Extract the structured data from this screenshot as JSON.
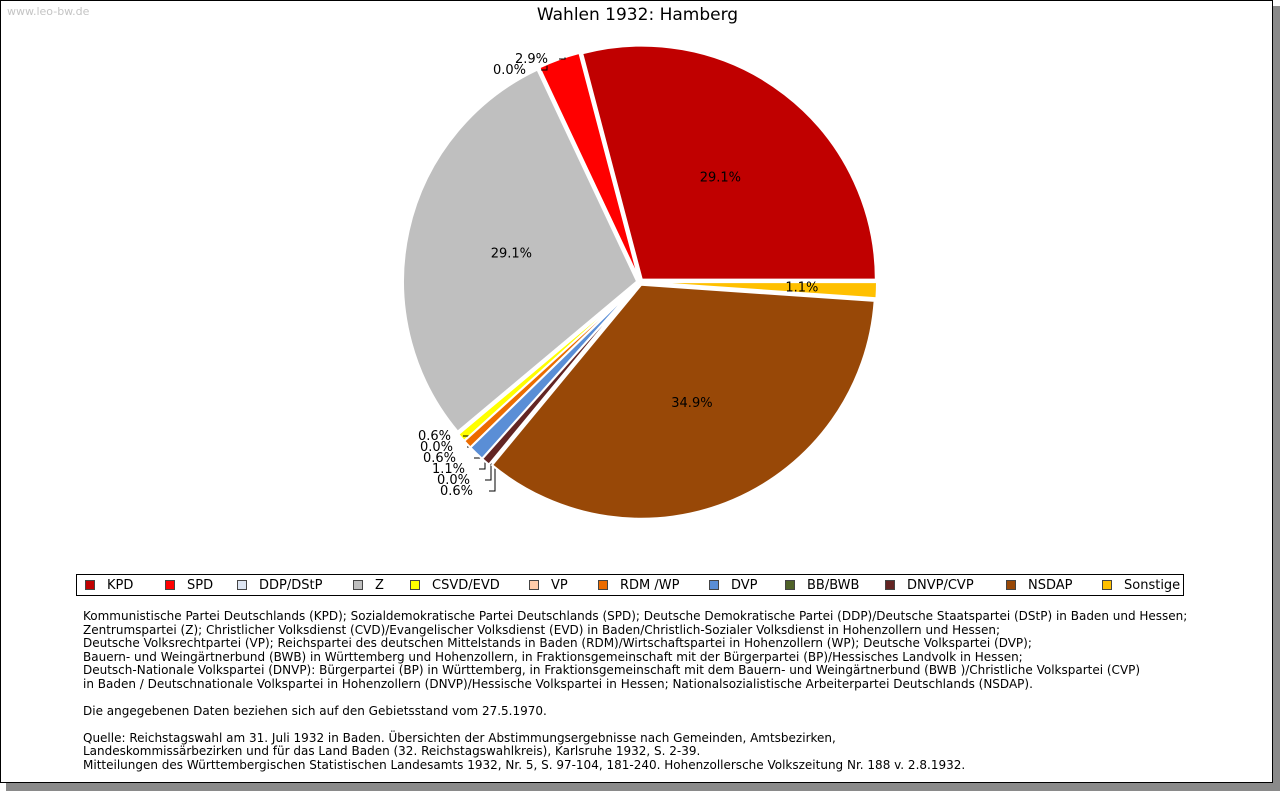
{
  "watermark": "www.leo-bw.de",
  "colors": {
    "KPD": "#c00000",
    "SPD": "#ff0000",
    "DDP/DStP": "#dde5f2",
    "Z": "#bfbfbf",
    "CSVD/EVD": "#ffff00",
    "VP": "#ffccaa",
    "RDM /WP": "#ec6c00",
    "DVP": "#5a8ed6",
    "BB/BWB": "#4f6228",
    "DNVP/CVP": "#632523",
    "NSDAP": "#984807",
    "Sonstige": "#ffc000"
  },
  "chart_data": {
    "type": "pie",
    "title": "Wahlen 1932: Hamberg",
    "categories": [
      "KPD",
      "SPD",
      "DDP/DStP",
      "Z",
      "CSVD/EVD",
      "VP",
      "RDM /WP",
      "DVP",
      "BB/BWB",
      "DNVP/CVP",
      "NSDAP",
      "Sonstige"
    ],
    "values": [
      29.1,
      2.9,
      0.0,
      29.1,
      0.6,
      0.0,
      0.6,
      1.1,
      0.0,
      0.6,
      34.9,
      1.1
    ],
    "labels": [
      "29.1%",
      "2.9%",
      "0.0%",
      "29.1%",
      "0.6%",
      "0.0%",
      "0.6%",
      "1.1%",
      "0.0%",
      "0.6%",
      "34.9%",
      "1.1%"
    ],
    "start": "3 o'clock",
    "direction": "counterclockwise",
    "legend_position": "bottom"
  },
  "notes": {
    "lines": [
      "Kommunistische Partei Deutschlands (KPD); Sozialdemokratische Partei Deutschlands (SPD); Deutsche Demokratische Partei (DDP)/Deutsche Staatspartei (DStP) in Baden und Hessen;",
      "Zentrumspartei (Z); Christlicher Volksdienst (CVD)/Evangelischer Volksdienst (EVD) in Baden/Christlich-Sozialer Volksdienst in Hohenzollern und Hessen;",
      "Deutsche Volksrechtpartei (VP); Reichspartei des deutschen Mittelstands in Baden (RDM)/Wirtschaftspartei in Hohenzollern (WP); Deutsche Volkspartei (DVP);",
      "Bauern- und Weingärtnerbund (BWB) in Württemberg und Hohenzollern, in Fraktionsgemeinschaft mit der Bürgerpartei (BP)/Hessisches Landvolk in Hessen;",
      "Deutsch-Nationale Volkspartei (DNVP): Bürgerpartei (BP) in Württemberg, in Fraktionsgemeinschaft mit dem Bauern- und Weingärtnerbund (BWB )/Christliche Volkspartei (CVP)",
      "in Baden / Deutschnationale Volkspartei in Hohenzollern (DNVP)/Hessische Volkspartei in Hessen; Nationalsozialistische Arbeiterpartei Deutschlands (NSDAP)."
    ],
    "stand": "Die angegebenen Daten beziehen sich auf den Gebietsstand vom 27.5.1970.",
    "source_lines": [
      "Quelle: Reichstagswahl am 31. Juli 1932 in Baden. Übersichten der Abstimmungsergebnisse nach Gemeinden, Amtsbezirken,",
      "Landeskommissärbezirken und für das Land Baden (32. Reichstagswahlkreis), Karlsruhe 1932, S. 2-39.",
      "Mitteilungen des Württembergischen Statistischen Landesamts 1932, Nr. 5, S. 97-104, 181-240. Hohenzollersche Volkszeitung Nr. 188 v. 2.8.1932."
    ]
  }
}
